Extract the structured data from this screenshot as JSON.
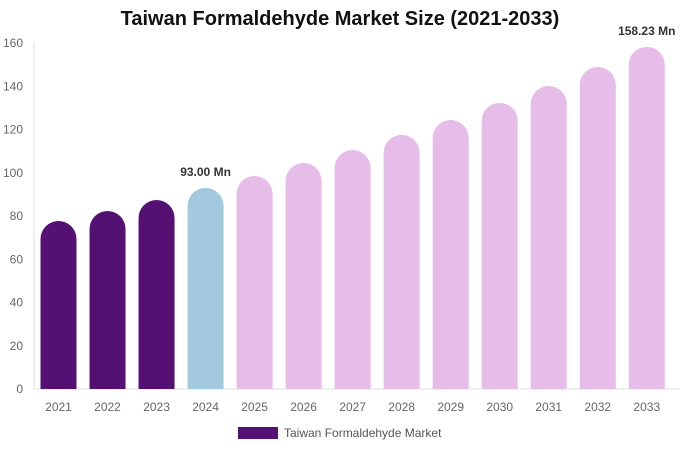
{
  "chart_data": {
    "type": "bar",
    "title": "Taiwan Formaldehyde Market Size (2021-2033)",
    "categories": [
      "2021",
      "2022",
      "2023",
      "2024",
      "2025",
      "2026",
      "2027",
      "2028",
      "2029",
      "2030",
      "2031",
      "2032",
      "2033"
    ],
    "series": [
      {
        "name": "Taiwan Formaldehyde Market",
        "values": [
          77.7,
          82.3,
          87.4,
          93.0,
          98.5,
          104.5,
          110.5,
          117.5,
          124.4,
          132.3,
          140.1,
          148.9,
          158.23
        ]
      }
    ],
    "bar_colors": [
      "#541173",
      "#541173",
      "#541173",
      "#a3c9de",
      "#e6bce8",
      "#e6bce8",
      "#e6bce8",
      "#e6bce8",
      "#e6bce8",
      "#e6bce8",
      "#e6bce8",
      "#e6bce8",
      "#e6bce8"
    ],
    "data_labels": {
      "3": "93.00 Mn",
      "12": "158.23 Mn"
    },
    "ylim": [
      0,
      160
    ],
    "yticks": [
      "0",
      "20",
      "40",
      "60",
      "80",
      "100",
      "120",
      "140",
      "160"
    ],
    "grid": false,
    "legend_position": "bottom",
    "xlabel": "",
    "ylabel": ""
  },
  "legend": {
    "label": "Taiwan Formaldehyde Market",
    "color": "#541173"
  }
}
